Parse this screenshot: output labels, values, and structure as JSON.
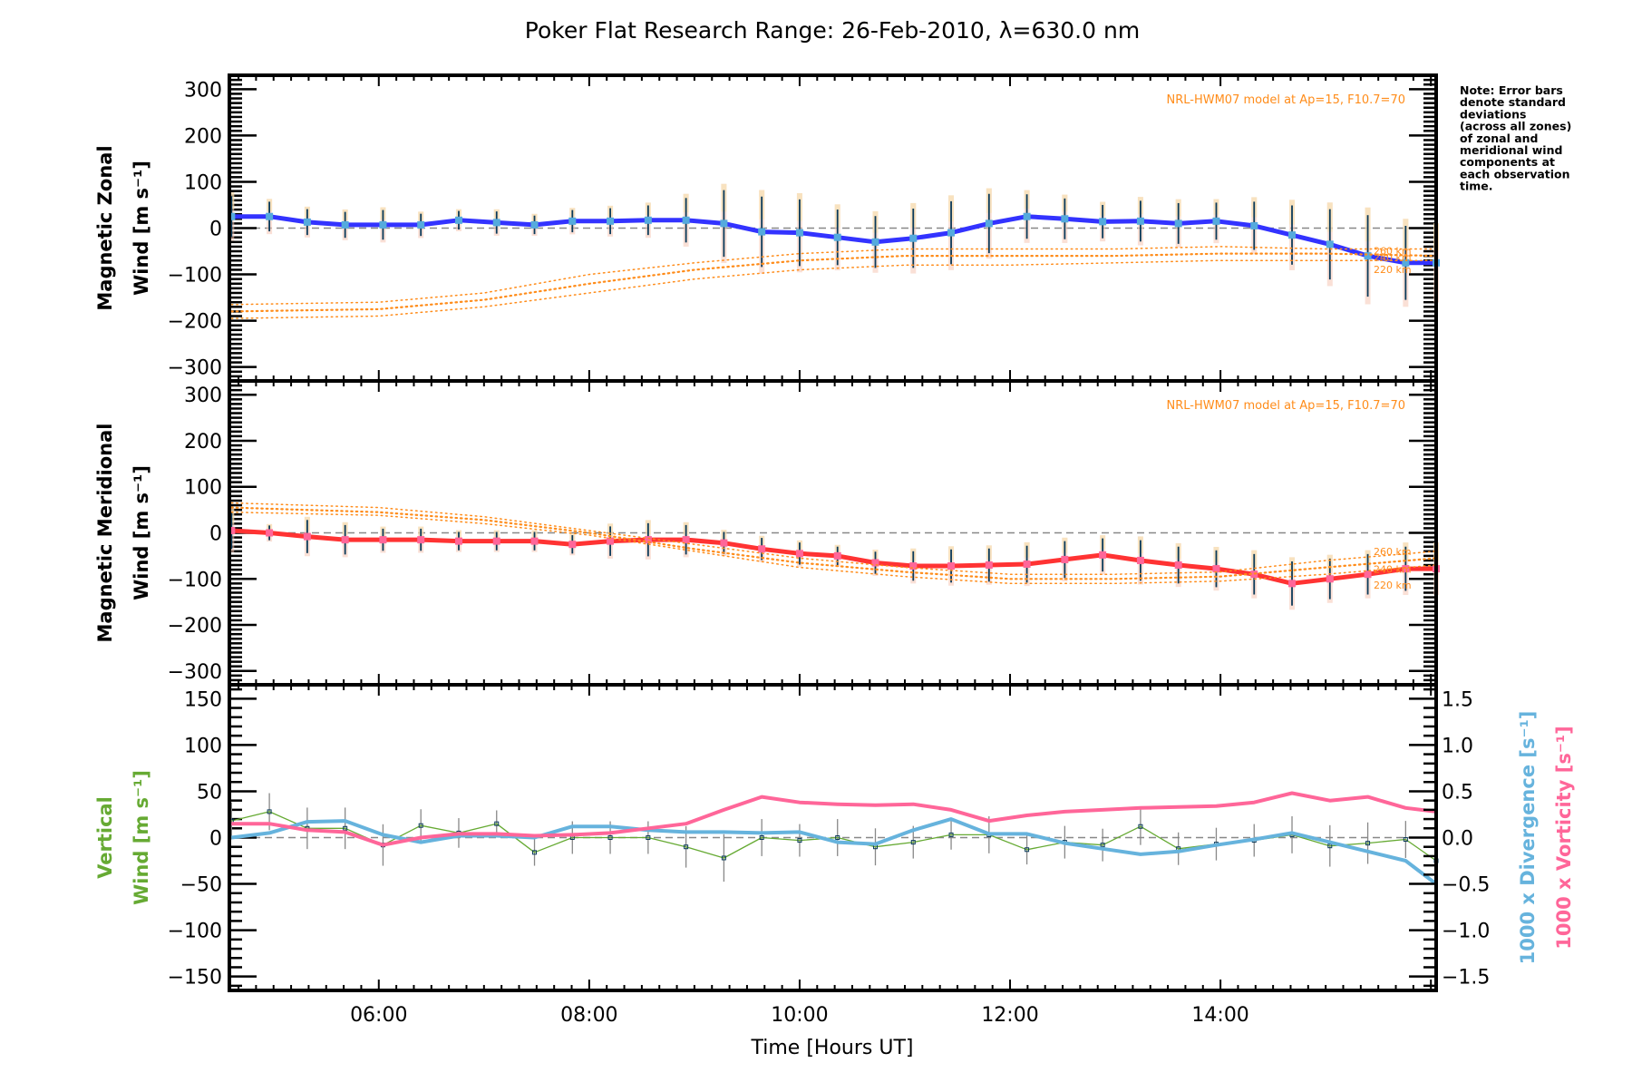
{
  "chart_data": [
    {
      "type": "line",
      "panel": "top",
      "title": "Poker Flat Research Range: 26-Feb-2010, λ=630.0 nm",
      "ylabel_line1": "Magnetic Zonal",
      "ylabel_line2": "Wind [m s⁻¹]",
      "ylim": [
        -330,
        330
      ],
      "yticks": [
        300,
        200,
        100,
        0,
        -100,
        -200,
        -300
      ],
      "model_label": "NRL-HWM07 model at Ap=15, F10.7=70",
      "km_labels": [
        "260 km",
        "240 km",
        "220 km"
      ],
      "series": [
        {
          "name": "Magnetic Zonal Wind",
          "color": "#3333ff",
          "x": [
            4.6,
            4.96,
            5.32,
            5.68,
            6.04,
            6.4,
            6.76,
            7.12,
            7.48,
            7.84,
            8.2,
            8.56,
            8.92,
            9.28,
            9.64,
            10.0,
            10.36,
            10.72,
            11.08,
            11.44,
            11.8,
            12.16,
            12.52,
            12.88,
            13.24,
            13.6,
            13.96,
            14.32,
            14.68,
            15.04,
            15.4,
            15.76,
            16.05
          ],
          "y": [
            25,
            25,
            13,
            7,
            7,
            7,
            17,
            12,
            7,
            15,
            15,
            17,
            17,
            10,
            -8,
            -10,
            -20,
            -30,
            -22,
            -10,
            10,
            25,
            20,
            14,
            15,
            10,
            15,
            5,
            -15,
            -35,
            -60,
            -75,
            -75
          ],
          "err": [
            55,
            40,
            35,
            35,
            40,
            30,
            25,
            30,
            25,
            30,
            35,
            40,
            60,
            90,
            95,
            90,
            75,
            70,
            80,
            85,
            80,
            60,
            55,
            45,
            55,
            55,
            50,
            65,
            80,
            95,
            110,
            100,
            90
          ]
        },
        {
          "name": "HWM07 260 km",
          "color": "#ff8c1a",
          "style": "dotted",
          "x": [
            4.6,
            6,
            7,
            8,
            9,
            10,
            11,
            12,
            13,
            14,
            15,
            16.05
          ],
          "y": [
            -165,
            -160,
            -140,
            -100,
            -75,
            -55,
            -45,
            -45,
            -45,
            -40,
            -45,
            -45
          ]
        },
        {
          "name": "HWM07 240 km",
          "color": "#ff8c1a",
          "style": "dotted",
          "x": [
            4.6,
            6,
            7,
            8,
            9,
            10,
            11,
            12,
            13,
            14,
            15,
            16.05
          ],
          "y": [
            -180,
            -175,
            -155,
            -120,
            -90,
            -70,
            -60,
            -60,
            -60,
            -55,
            -55,
            -60
          ]
        },
        {
          "name": "HWM07 220 km",
          "color": "#ff8c1a",
          "style": "dotted",
          "x": [
            4.6,
            6,
            7,
            8,
            9,
            10,
            11,
            12,
            13,
            14,
            15,
            16.05
          ],
          "y": [
            -195,
            -190,
            -170,
            -140,
            -110,
            -90,
            -80,
            -80,
            -75,
            -70,
            -70,
            -70
          ]
        }
      ]
    },
    {
      "type": "line",
      "panel": "middle",
      "ylabel_line1": "Magnetic Meridional",
      "ylabel_line2": "Wind [m s⁻¹]",
      "ylim": [
        -330,
        330
      ],
      "yticks": [
        300,
        200,
        100,
        0,
        -100,
        -200,
        -300
      ],
      "model_label": "NRL-HWM07 model at Ap=15, F10.7=70",
      "km_labels": [
        "260 km",
        "240 km",
        "220 km"
      ],
      "series": [
        {
          "name": "Magnetic Meridional Wind",
          "color": "#ff3333",
          "x": [
            4.6,
            4.96,
            5.32,
            5.68,
            6.04,
            6.4,
            6.76,
            7.12,
            7.48,
            7.84,
            8.2,
            8.56,
            8.92,
            9.28,
            9.64,
            10.0,
            10.36,
            10.72,
            11.08,
            11.44,
            11.8,
            12.16,
            12.52,
            12.88,
            13.24,
            13.6,
            13.96,
            14.32,
            14.68,
            15.04,
            15.4,
            15.76,
            16.05
          ],
          "y": [
            5,
            0,
            -8,
            -15,
            -15,
            -15,
            -18,
            -18,
            -18,
            -25,
            -18,
            -15,
            -15,
            -22,
            -35,
            -45,
            -50,
            -65,
            -72,
            -72,
            -70,
            -68,
            -58,
            -48,
            -60,
            -70,
            -78,
            -90,
            -110,
            -100,
            -90,
            -78,
            -78
          ],
          "err": [
            50,
            20,
            45,
            40,
            30,
            30,
            25,
            25,
            25,
            25,
            40,
            45,
            40,
            30,
            30,
            30,
            25,
            30,
            40,
            45,
            45,
            50,
            50,
            45,
            55,
            50,
            50,
            55,
            60,
            55,
            55,
            60,
            60
          ]
        },
        {
          "name": "HWM07 260 km",
          "color": "#ff8c1a",
          "style": "dotted",
          "x": [
            4.6,
            6,
            7,
            8,
            9,
            10,
            11,
            12,
            13,
            14,
            15,
            16.05
          ],
          "y": [
            65,
            55,
            35,
            5,
            -25,
            -55,
            -75,
            -90,
            -90,
            -85,
            -60,
            -40
          ]
        },
        {
          "name": "HWM07 240 km",
          "color": "#ff8c1a",
          "style": "dotted",
          "x": [
            4.6,
            6,
            7,
            8,
            9,
            10,
            11,
            12,
            13,
            14,
            15,
            16.05
          ],
          "y": [
            55,
            45,
            28,
            0,
            -35,
            -65,
            -85,
            -100,
            -100,
            -95,
            -75,
            -55
          ]
        },
        {
          "name": "HWM07 220 km",
          "color": "#ff8c1a",
          "style": "dotted",
          "x": [
            4.6,
            6,
            7,
            8,
            9,
            10,
            11,
            12,
            13,
            14,
            15,
            16.05
          ],
          "y": [
            45,
            38,
            20,
            -5,
            -40,
            -75,
            -95,
            -110,
            -110,
            -105,
            -90,
            -70
          ]
        }
      ]
    },
    {
      "type": "line",
      "panel": "bottom",
      "ylabel_line1": "Vertical",
      "ylabel_line2": "Wind [m s⁻¹]",
      "ylabel_color": "#66aa33",
      "ylim": [
        -165,
        165
      ],
      "yticks": [
        150,
        100,
        50,
        0,
        -50,
        -100,
        -150
      ],
      "y2lim": [
        -1.65,
        1.65
      ],
      "y2ticks": [
        "1.5",
        "1.0",
        "0.5",
        "0.0",
        "-0.5",
        "-1.0",
        "-1.5"
      ],
      "y2label_divergence": "1000 x Divergence [s⁻¹]",
      "y2label_vorticity": "1000 x Vorticity [s⁻¹]",
      "xlabel": "Time [Hours UT]",
      "xticks": [
        "06:00",
        "08:00",
        "10:00",
        "12:00",
        "14:00"
      ],
      "xlim": [
        4.58,
        16.05
      ],
      "series": [
        {
          "name": "Vertical Wind",
          "color": "#66aa33",
          "x": [
            4.6,
            4.96,
            5.32,
            5.68,
            6.04,
            6.4,
            6.76,
            7.12,
            7.48,
            7.84,
            8.2,
            8.56,
            8.92,
            9.28,
            9.64,
            10.0,
            10.36,
            10.72,
            11.08,
            11.44,
            11.8,
            12.16,
            12.52,
            12.88,
            13.24,
            13.6,
            13.96,
            14.32,
            14.68,
            15.04,
            15.4,
            15.76,
            16.05
          ],
          "y": [
            18,
            28,
            10,
            10,
            -8,
            13,
            5,
            15,
            -16,
            0,
            0,
            0,
            -10,
            -22,
            0,
            -3,
            0,
            -10,
            -5,
            3,
            3,
            -13,
            -5,
            -8,
            12,
            -12,
            -7,
            -3,
            3,
            -9,
            -6,
            -2,
            -25
          ],
          "err": [
            25,
            25,
            28,
            28,
            28,
            22,
            20,
            18,
            18,
            22,
            22,
            22,
            28,
            32,
            25,
            22,
            25,
            25,
            22,
            20,
            25,
            20,
            22,
            22,
            25,
            22,
            22,
            22,
            25,
            28,
            28,
            25,
            28
          ]
        },
        {
          "name": "1000 x Divergence",
          "axis": "right",
          "color": "#66b3dd",
          "x": [
            4.6,
            4.96,
            5.32,
            5.68,
            6.04,
            6.4,
            6.76,
            7.12,
            7.48,
            7.84,
            8.2,
            8.56,
            8.92,
            9.28,
            9.64,
            10.0,
            10.36,
            10.72,
            11.08,
            11.44,
            11.8,
            12.16,
            12.52,
            12.88,
            13.24,
            13.6,
            13.96,
            14.32,
            14.68,
            15.04,
            15.4,
            15.76,
            16.05
          ],
          "y": [
            0.0,
            0.05,
            0.17,
            0.18,
            0.03,
            -0.05,
            0.02,
            0.02,
            0.0,
            0.12,
            0.12,
            0.08,
            0.06,
            0.06,
            0.05,
            0.06,
            -0.05,
            -0.07,
            0.08,
            0.2,
            0.04,
            0.04,
            -0.06,
            -0.12,
            -0.18,
            -0.15,
            -0.08,
            -0.02,
            0.05,
            -0.05,
            -0.15,
            -0.25,
            -0.5
          ],
          "note": "right-axis data units"
        },
        {
          "name": "1000 x Vorticity",
          "axis": "right",
          "color": "#ff6699",
          "x": [
            4.6,
            4.96,
            5.32,
            5.68,
            6.04,
            6.4,
            6.76,
            7.12,
            7.48,
            7.84,
            8.2,
            8.56,
            8.92,
            9.28,
            9.64,
            10.0,
            10.36,
            10.72,
            11.08,
            11.44,
            11.8,
            12.16,
            12.52,
            12.88,
            13.24,
            13.6,
            13.96,
            14.32,
            14.68,
            15.04,
            15.4,
            15.76,
            16.05
          ],
          "y": [
            0.15,
            0.15,
            0.08,
            0.06,
            -0.08,
            0.0,
            0.04,
            0.04,
            0.02,
            0.03,
            0.05,
            0.1,
            0.15,
            0.3,
            0.44,
            0.38,
            0.36,
            0.35,
            0.36,
            0.3,
            0.18,
            0.24,
            0.28,
            0.3,
            0.32,
            0.33,
            0.34,
            0.38,
            0.48,
            0.4,
            0.44,
            0.32,
            0.28
          ]
        }
      ]
    }
  ],
  "note": [
    "Note: Error bars",
    "denote standard",
    "deviations",
    "(across all zones)",
    "of zonal and",
    "meridional wind",
    "components at",
    "each observation",
    "time."
  ]
}
